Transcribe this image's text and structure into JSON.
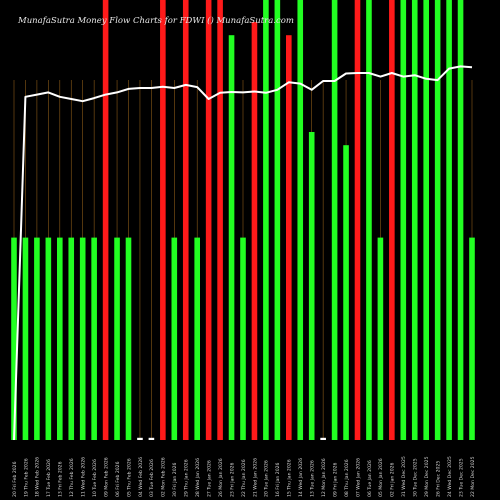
{
  "chart_data": {
    "type": "bar",
    "title": "MunafaSutra  Money  Flow  Charts for FDWI  ()  MunafaSutra.com",
    "xlabel": "",
    "ylabel": "",
    "ylim": [
      0,
      100
    ],
    "grid": false,
    "categories": [
      "20 Fri Feb 2026",
      "19 Thu Feb 2026",
      "18 Wed Feb 2026",
      "17 Tue Feb 2026",
      "13 Fri Feb 2026",
      "12 Thu Feb 2026",
      "11 Wed Feb 2026",
      "10 Tue Feb 2026",
      "09 Mon Feb 2026",
      "06 Fri Feb 2026",
      "05 Thu Feb 2026",
      "04 Wed Feb 2026",
      "03 Tue Feb 2026",
      "02 Mon Feb 2026",
      "30 Fri Jan 2026",
      "29 Thu Jan 2026",
      "28 Wed Jan 2026",
      "27 Tue Jan 2026",
      "26 Mon Jan 2026",
      "23 Fri Jan 2026",
      "22 Thu Jan 2026",
      "21 Wed Jan 2026",
      "20 Tue Jan 2026",
      "16 Fri Jan 2026",
      "15 Thu Jan 2026",
      "14 Wed Jan 2026",
      "13 Tue Jan 2026",
      "12 Mon Jan 2026",
      "09 Fri Jan 2026",
      "08 Thu Jan 2026",
      "07 Wed Jan 2026",
      "06 Tue Jan 2026",
      "05 Mon Jan 2026",
      "02 Fri Jan 2026",
      "31 Wed Dec 2025",
      "30 Tue Dec 2025",
      "29 Mon Dec 2025",
      "26 Fri Dec 2025",
      "24 Wed Dec 2025",
      "23 Tue Dec 2025",
      "22 Mon Dec 2025"
    ],
    "series": [
      {
        "values": [
          46,
          46,
          46,
          46,
          46,
          46,
          46,
          46,
          100,
          46,
          46,
          0.5,
          0.5,
          100,
          46,
          100,
          46,
          100,
          100,
          92,
          46,
          95,
          100,
          100,
          92,
          100,
          70,
          0.5,
          100,
          67,
          100,
          100,
          46,
          100,
          100,
          100,
          100,
          100,
          100,
          100,
          46
        ],
        "colors": [
          "green",
          "green",
          "green",
          "green",
          "green",
          "green",
          "green",
          "green",
          "red",
          "green",
          "green",
          "white",
          "white",
          "red",
          "green",
          "red",
          "green",
          "red",
          "red",
          "green",
          "green",
          "red",
          "green",
          "green",
          "red",
          "green",
          "green",
          "white",
          "green",
          "green",
          "red",
          "green",
          "green",
          "red",
          "green",
          "green",
          "green",
          "green",
          "green",
          "green",
          "green"
        ]
      },
      {
        "type": "line",
        "values": [
          null,
          78,
          78.5,
          79,
          78,
          77.5,
          77,
          77.7,
          78.5,
          79,
          79.8,
          80,
          80,
          80.3,
          80,
          80.7,
          80.2,
          77.5,
          78.9,
          79.1,
          79,
          79.2,
          78.9,
          79.6,
          81.3,
          81,
          79.6,
          81.6,
          81.6,
          83.3,
          83.4,
          83.4,
          82.6,
          83.4,
          82.6,
          82.9,
          82.1,
          81.8,
          84.4,
          84.9,
          84.7
        ],
        "color": "white"
      }
    ],
    "colors": {
      "green": "#22ff22",
      "red": "#ff1a1a",
      "white": "#ffffff",
      "grid": "#8a5a18"
    }
  }
}
